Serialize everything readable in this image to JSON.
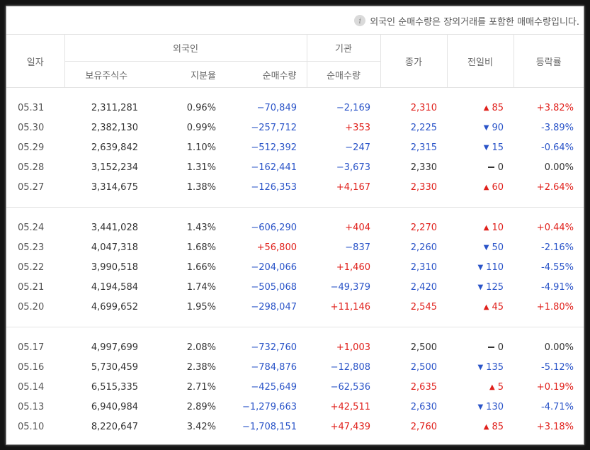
{
  "notice": {
    "icon": "info-icon",
    "text": "외국인 순매수량은 장외거래를 포함한 매매수량입니다."
  },
  "header": {
    "date": "일자",
    "foreign": "외국인",
    "institution": "기관",
    "close": "종가",
    "change": "전일비",
    "rate": "등락률",
    "holdings": "보유주식수",
    "share": "지분율",
    "foreign_net": "순매수량",
    "inst_net": "순매수량"
  },
  "colors": {
    "up": "#e0201b",
    "down": "#2a54c8",
    "flat": "#333333"
  },
  "groups": [
    [
      {
        "date": "05.31",
        "holdings": "2,311,281",
        "share": "0.96%",
        "foreign_net": "−70,849",
        "foreign_dir": "down",
        "inst_net": "−2,169",
        "inst_dir": "down",
        "close": "2,310",
        "dir": "up",
        "arrow": "▲",
        "change": "85",
        "rate": "+3.82%"
      },
      {
        "date": "05.30",
        "holdings": "2,382,130",
        "share": "0.99%",
        "foreign_net": "−257,712",
        "foreign_dir": "down",
        "inst_net": "+353",
        "inst_dir": "up",
        "close": "2,225",
        "dir": "down",
        "arrow": "▼",
        "change": "90",
        "rate": "-3.89%"
      },
      {
        "date": "05.29",
        "holdings": "2,639,842",
        "share": "1.10%",
        "foreign_net": "−512,392",
        "foreign_dir": "down",
        "inst_net": "−247",
        "inst_dir": "down",
        "close": "2,315",
        "dir": "down",
        "arrow": "▼",
        "change": "15",
        "rate": "-0.64%"
      },
      {
        "date": "05.28",
        "holdings": "3,152,234",
        "share": "1.31%",
        "foreign_net": "−162,441",
        "foreign_dir": "down",
        "inst_net": "−3,673",
        "inst_dir": "down",
        "close": "2,330",
        "dir": "flat",
        "arrow": "",
        "change": "0",
        "rate": "0.00%"
      },
      {
        "date": "05.27",
        "holdings": "3,314,675",
        "share": "1.38%",
        "foreign_net": "−126,353",
        "foreign_dir": "down",
        "inst_net": "+4,167",
        "inst_dir": "up",
        "close": "2,330",
        "dir": "up",
        "arrow": "▲",
        "change": "60",
        "rate": "+2.64%"
      }
    ],
    [
      {
        "date": "05.24",
        "holdings": "3,441,028",
        "share": "1.43%",
        "foreign_net": "−606,290",
        "foreign_dir": "down",
        "inst_net": "+404",
        "inst_dir": "up",
        "close": "2,270",
        "dir": "up",
        "arrow": "▲",
        "change": "10",
        "rate": "+0.44%"
      },
      {
        "date": "05.23",
        "holdings": "4,047,318",
        "share": "1.68%",
        "foreign_net": "+56,800",
        "foreign_dir": "up",
        "inst_net": "−837",
        "inst_dir": "down",
        "close": "2,260",
        "dir": "down",
        "arrow": "▼",
        "change": "50",
        "rate": "-2.16%"
      },
      {
        "date": "05.22",
        "holdings": "3,990,518",
        "share": "1.66%",
        "foreign_net": "−204,066",
        "foreign_dir": "down",
        "inst_net": "+1,460",
        "inst_dir": "up",
        "close": "2,310",
        "dir": "down",
        "arrow": "▼",
        "change": "110",
        "rate": "-4.55%"
      },
      {
        "date": "05.21",
        "holdings": "4,194,584",
        "share": "1.74%",
        "foreign_net": "−505,068",
        "foreign_dir": "down",
        "inst_net": "−49,379",
        "inst_dir": "down",
        "close": "2,420",
        "dir": "down",
        "arrow": "▼",
        "change": "125",
        "rate": "-4.91%"
      },
      {
        "date": "05.20",
        "holdings": "4,699,652",
        "share": "1.95%",
        "foreign_net": "−298,047",
        "foreign_dir": "down",
        "inst_net": "+11,146",
        "inst_dir": "up",
        "close": "2,545",
        "dir": "up",
        "arrow": "▲",
        "change": "45",
        "rate": "+1.80%"
      }
    ],
    [
      {
        "date": "05.17",
        "holdings": "4,997,699",
        "share": "2.08%",
        "foreign_net": "−732,760",
        "foreign_dir": "down",
        "inst_net": "+1,003",
        "inst_dir": "up",
        "close": "2,500",
        "dir": "flat",
        "arrow": "",
        "change": "0",
        "rate": "0.00%"
      },
      {
        "date": "05.16",
        "holdings": "5,730,459",
        "share": "2.38%",
        "foreign_net": "−784,876",
        "foreign_dir": "down",
        "inst_net": "−12,808",
        "inst_dir": "down",
        "close": "2,500",
        "dir": "down",
        "arrow": "▼",
        "change": "135",
        "rate": "-5.12%"
      },
      {
        "date": "05.14",
        "holdings": "6,515,335",
        "share": "2.71%",
        "foreign_net": "−425,649",
        "foreign_dir": "down",
        "inst_net": "−62,536",
        "inst_dir": "down",
        "close": "2,635",
        "dir": "up",
        "arrow": "▲",
        "change": "5",
        "rate": "+0.19%"
      },
      {
        "date": "05.13",
        "holdings": "6,940,984",
        "share": "2.89%",
        "foreign_net": "−1,279,663",
        "foreign_dir": "down",
        "inst_net": "+42,511",
        "inst_dir": "up",
        "close": "2,630",
        "dir": "down",
        "arrow": "▼",
        "change": "130",
        "rate": "-4.71%"
      },
      {
        "date": "05.10",
        "holdings": "8,220,647",
        "share": "3.42%",
        "foreign_net": "−1,708,151",
        "foreign_dir": "down",
        "inst_net": "+47,439",
        "inst_dir": "up",
        "close": "2,760",
        "dir": "up",
        "arrow": "▲",
        "change": "85",
        "rate": "+3.18%"
      }
    ]
  ]
}
